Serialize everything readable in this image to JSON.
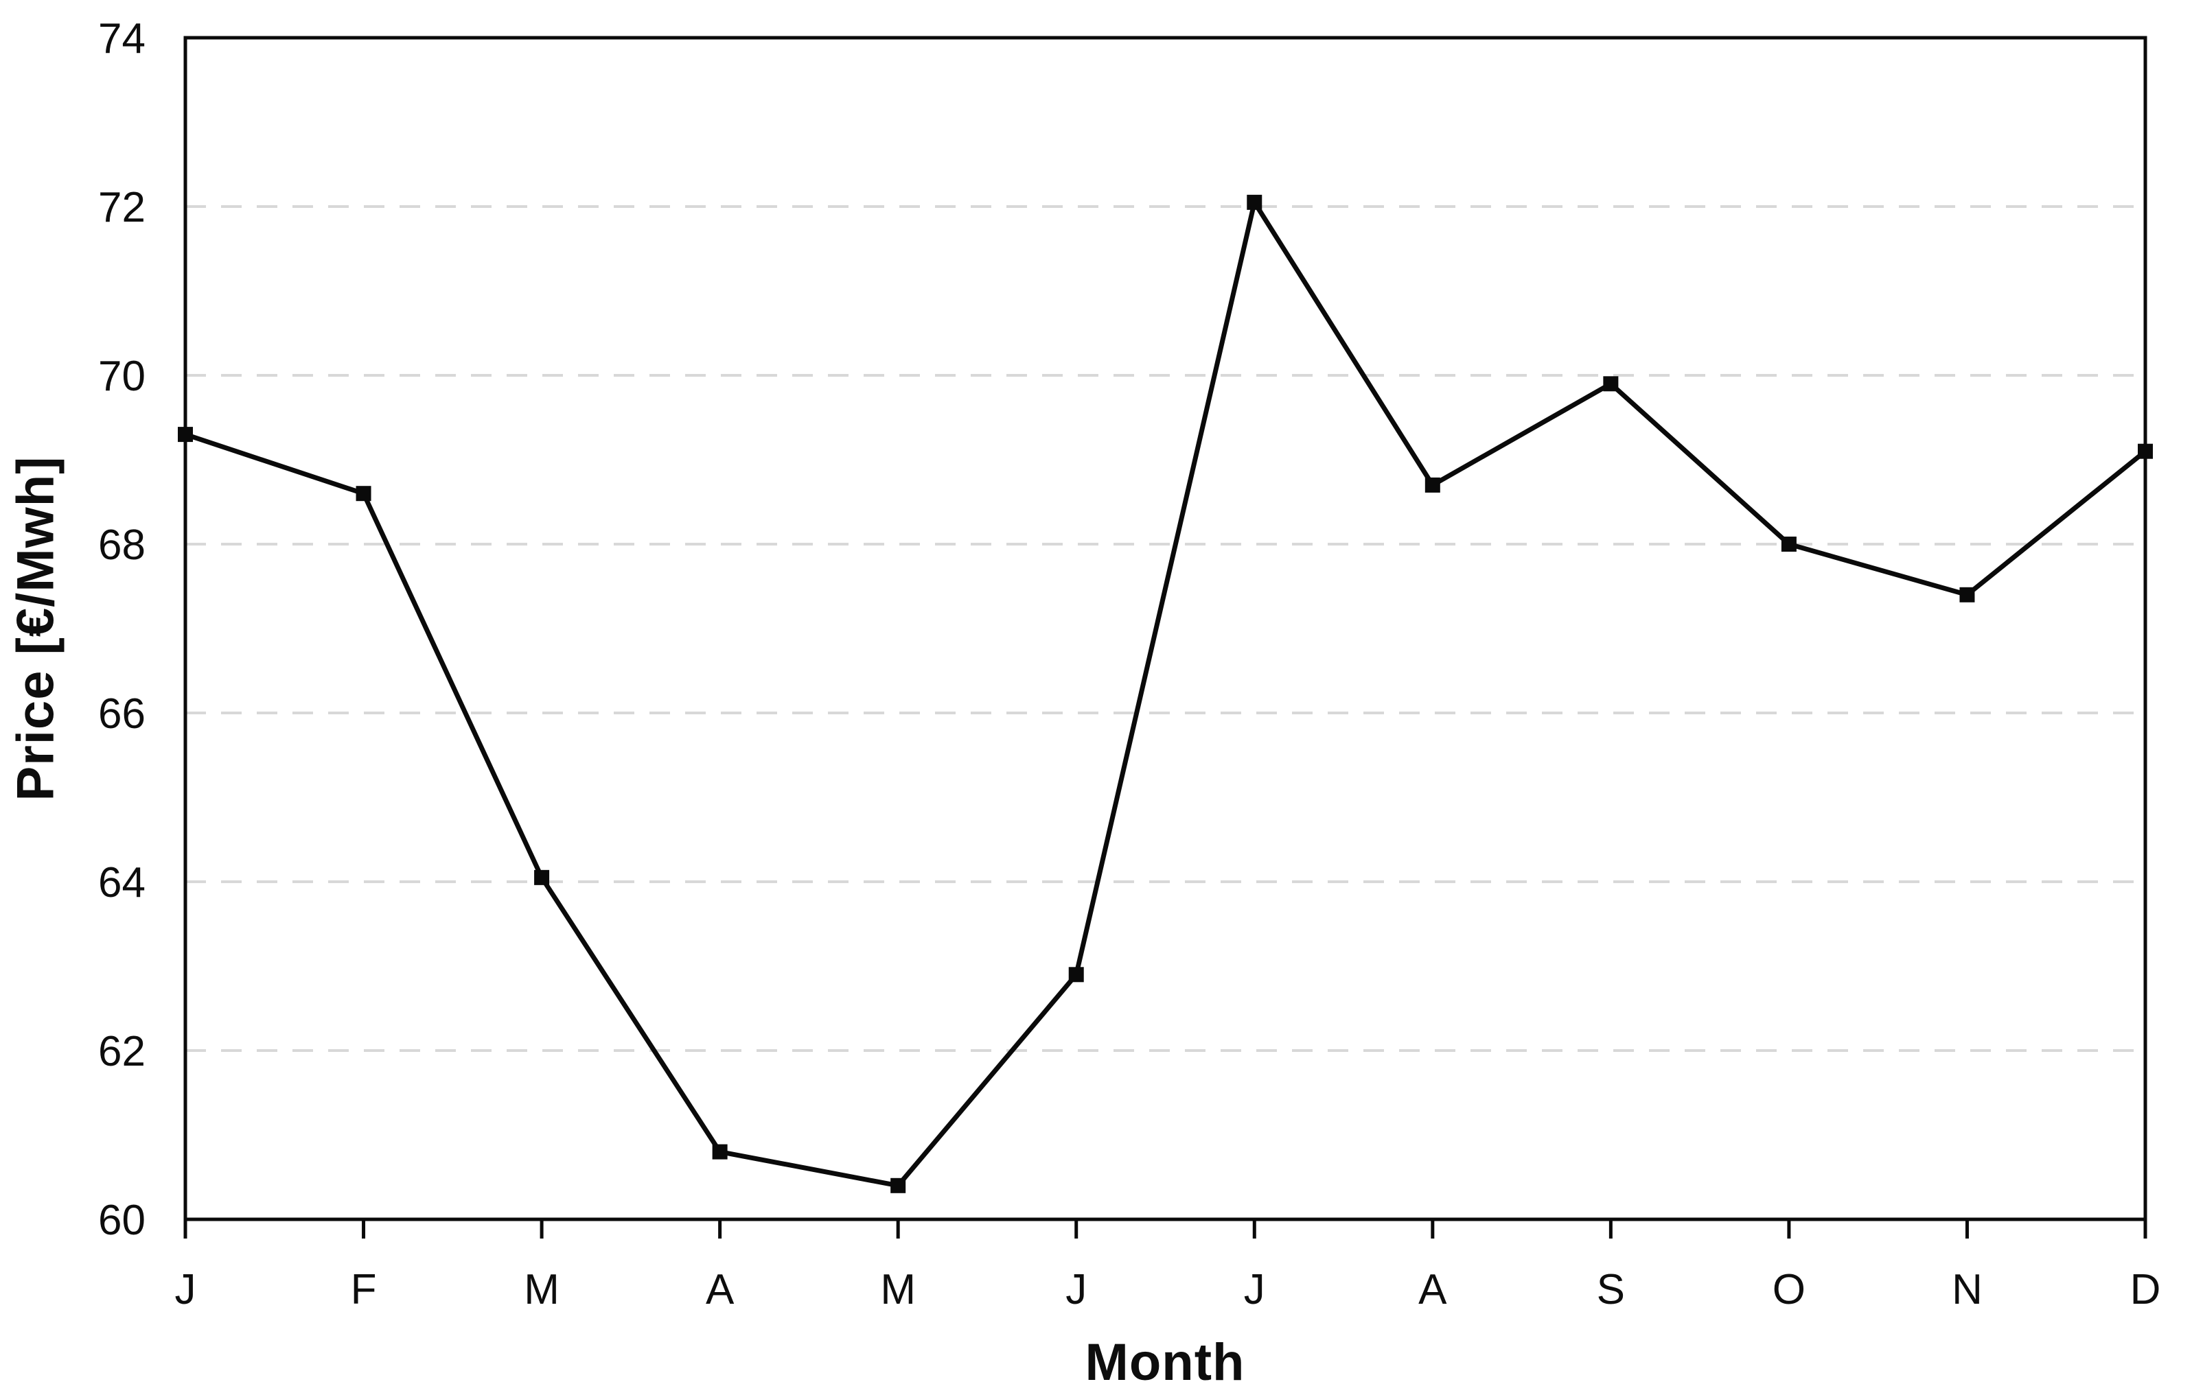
{
  "chart_data": {
    "type": "line",
    "title": "",
    "xlabel": "Month",
    "ylabel": "Price [€/Mwh]",
    "categories": [
      "J",
      "F",
      "M",
      "A",
      "M",
      "J",
      "J",
      "A",
      "S",
      "O",
      "N",
      "D"
    ],
    "series": [
      {
        "name": "Price",
        "values": [
          69.3,
          68.6,
          64.05,
          60.8,
          60.4,
          62.9,
          72.05,
          68.7,
          69.9,
          68.0,
          67.4,
          69.1
        ]
      }
    ],
    "ylim": [
      60,
      74
    ],
    "ytick_step": 2,
    "ytick_labels": [
      "60",
      "62",
      "64",
      "66",
      "68",
      "70",
      "72",
      "74"
    ],
    "grid": "horizontal-dashed-interior",
    "legend_position": "none",
    "marker": "square",
    "colors": {
      "line": "#0a0a0a",
      "marker": "#0a0a0a",
      "gridline": "#d8d8d8",
      "frame": "#0a0a0a",
      "text": "#0d0d0d",
      "background": "#ffffff"
    }
  }
}
